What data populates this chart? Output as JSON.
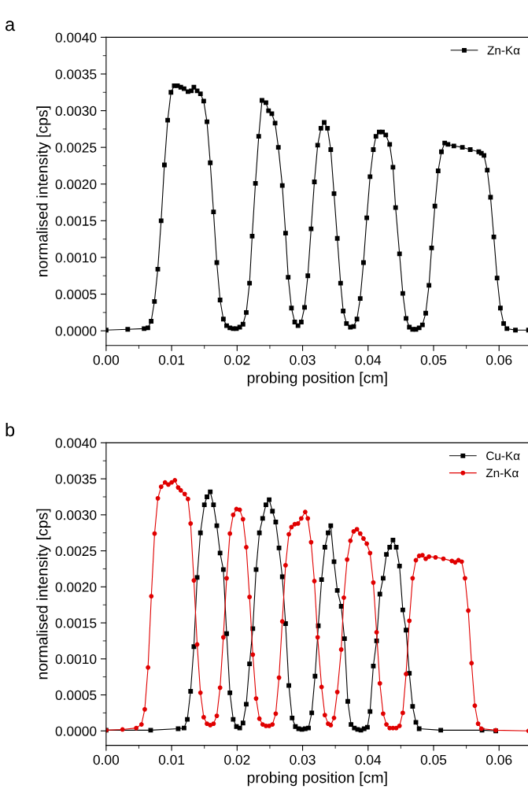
{
  "chart_data": [
    {
      "type": "line",
      "title": "a",
      "xlabel": "probing position [cm]",
      "ylabel": "normalised intensity [cps]",
      "legend": "top right",
      "grid": false,
      "xlim": [
        0,
        0.0645
      ],
      "ylim": [
        -0.0002,
        0.004
      ],
      "xticks": [
        {
          "value": 0,
          "label": "0.00"
        },
        {
          "value": 0.01,
          "label": "0.01"
        },
        {
          "value": 0.02,
          "label": "0.02"
        },
        {
          "value": 0.03,
          "label": "0.03"
        },
        {
          "value": 0.04,
          "label": "0.04"
        },
        {
          "value": 0.05,
          "label": "0.05"
        },
        {
          "value": 0.06,
          "label": "0.06"
        }
      ],
      "yticks": [
        {
          "value": 0,
          "label": "0.0000"
        },
        {
          "value": 0.0005,
          "label": "0.0005"
        },
        {
          "value": 0.001,
          "label": "0.0010"
        },
        {
          "value": 0.0015,
          "label": "0.0015"
        },
        {
          "value": 0.002,
          "label": "0.0020"
        },
        {
          "value": 0.0025,
          "label": "0.0025"
        },
        {
          "value": 0.003,
          "label": "0.0030"
        },
        {
          "value": 0.0035,
          "label": "0.0035"
        },
        {
          "value": 0.004,
          "label": "0.0040"
        }
      ],
      "series": [
        {
          "name": "Zn-Kα",
          "color": "#000000",
          "marker": "square",
          "x": [
            0,
            0.0033,
            0.0058,
            0.00637,
            0.00688,
            0.00738,
            0.00789,
            0.0084,
            0.0089,
            0.0094,
            0.0099,
            0.0104,
            0.0109,
            0.0114,
            0.0119,
            0.0125,
            0.013,
            0.0134,
            0.0139,
            0.0144,
            0.0149,
            0.0154,
            0.0159,
            0.0164,
            0.0169,
            0.0174,
            0.0179,
            0.0184,
            0.0189,
            0.0194,
            0.0199,
            0.0204,
            0.0209,
            0.0214,
            0.0219,
            0.0223,
            0.0228,
            0.0233,
            0.0238,
            0.0244,
            0.0248,
            0.0253,
            0.0258,
            0.0263,
            0.0269,
            0.0274,
            0.0278,
            0.0283,
            0.0288,
            0.0293,
            0.0298,
            0.0303,
            0.0308,
            0.0313,
            0.0318,
            0.0323,
            0.0328,
            0.0333,
            0.0338,
            0.0343,
            0.0348,
            0.0353,
            0.0358,
            0.0362,
            0.0367,
            0.0373,
            0.0378,
            0.0383,
            0.0388,
            0.0393,
            0.0398,
            0.0403,
            0.0408,
            0.0412,
            0.0417,
            0.0422,
            0.0427,
            0.0433,
            0.0438,
            0.0442,
            0.0448,
            0.0453,
            0.0458,
            0.0463,
            0.0468,
            0.0473,
            0.0478,
            0.0483,
            0.0488,
            0.0493,
            0.0497,
            0.0502,
            0.0507,
            0.0512,
            0.0517,
            0.0522,
            0.0531,
            0.0544,
            0.0556,
            0.0569,
            0.0573,
            0.0577,
            0.0582,
            0.0587,
            0.0592,
            0.0597,
            0.0602,
            0.0607,
            0.0612,
            0.0625,
            0.0645
          ],
          "values": [
            1e-05,
            2e-05,
            3e-05,
            4e-05,
            0.00013,
            0.0004,
            0.00084,
            0.0015,
            0.00226,
            0.00287,
            0.00325,
            0.00334,
            0.00334,
            0.00332,
            0.0033,
            0.00326,
            0.00327,
            0.00332,
            0.00327,
            0.00323,
            0.00313,
            0.00285,
            0.00229,
            0.00162,
            0.00093,
            0.00042,
            0.00016,
            7e-05,
            4e-05,
            3e-05,
            3e-05,
            5e-05,
            9e-05,
            0.00025,
            0.00065,
            0.00129,
            0.00201,
            0.00265,
            0.00314,
            0.00311,
            0.003,
            0.00296,
            0.00283,
            0.0025,
            0.00198,
            0.00133,
            0.00073,
            0.00031,
            0.00012,
            7e-05,
            0.00012,
            0.00032,
            0.00075,
            0.00139,
            0.00203,
            0.00253,
            0.00276,
            0.00284,
            0.00276,
            0.00247,
            0.00187,
            0.00126,
            0.00065,
            0.00027,
            0.0001,
            5e-05,
            6e-05,
            0.00016,
            0.00044,
            0.00093,
            0.00154,
            0.0021,
            0.00247,
            0.00265,
            0.00271,
            0.00271,
            0.00267,
            0.00254,
            0.00223,
            0.00168,
            0.00105,
            0.00051,
            0.00017,
            5e-05,
            2e-05,
            2e-05,
            4e-05,
            8e-05,
            0.00024,
            0.00062,
            0.00113,
            0.0017,
            0.00218,
            0.00244,
            0.00256,
            0.00254,
            0.00252,
            0.0025,
            0.00247,
            0.00244,
            0.00242,
            0.00239,
            0.00219,
            0.00182,
            0.00128,
            0.00072,
            0.00031,
            0.0001,
            3e-05,
            1e-05,
            1e-05
          ]
        }
      ]
    },
    {
      "type": "line",
      "title": "b",
      "xlabel": "probing position [cm]",
      "ylabel": "normalised intensity [cps]",
      "legend": "top right",
      "grid": false,
      "xlim": [
        0,
        0.0645
      ],
      "ylim": [
        -0.0002,
        0.004
      ],
      "xticks": [
        {
          "value": 0,
          "label": "0.00"
        },
        {
          "value": 0.01,
          "label": "0.01"
        },
        {
          "value": 0.02,
          "label": "0.02"
        },
        {
          "value": 0.03,
          "label": "0.03"
        },
        {
          "value": 0.04,
          "label": "0.04"
        },
        {
          "value": 0.05,
          "label": "0.05"
        },
        {
          "value": 0.06,
          "label": "0.06"
        }
      ],
      "yticks": [
        {
          "value": 0,
          "label": "0.0000"
        },
        {
          "value": 0.0005,
          "label": "0.0005"
        },
        {
          "value": 0.001,
          "label": "0.0010"
        },
        {
          "value": 0.0015,
          "label": "0.0015"
        },
        {
          "value": 0.002,
          "label": "0.0020"
        },
        {
          "value": 0.0025,
          "label": "0.0025"
        },
        {
          "value": 0.003,
          "label": "0.0030"
        },
        {
          "value": 0.0035,
          "label": "0.0035"
        },
        {
          "value": 0.004,
          "label": "0.0040"
        }
      ],
      "series": [
        {
          "name": "Cu-Kα",
          "color": "#000000",
          "marker": "square",
          "x": [
            0,
            0.0068,
            0.011,
            0.0119,
            0.0124,
            0.0129,
            0.0134,
            0.0139,
            0.0144,
            0.015,
            0.0154,
            0.0159,
            0.0164,
            0.0169,
            0.0174,
            0.0179,
            0.0184,
            0.0189,
            0.0194,
            0.0199,
            0.0204,
            0.0209,
            0.0214,
            0.0219,
            0.0224,
            0.0229,
            0.0234,
            0.0239,
            0.0244,
            0.0249,
            0.0254,
            0.0259,
            0.0264,
            0.0269,
            0.0274,
            0.0279,
            0.0284,
            0.0289,
            0.0294,
            0.0299,
            0.0304,
            0.0309,
            0.0314,
            0.0319,
            0.0324,
            0.0329,
            0.0334,
            0.0339,
            0.0343,
            0.0348,
            0.0353,
            0.0359,
            0.0364,
            0.0369,
            0.0374,
            0.0379,
            0.0384,
            0.0389,
            0.0394,
            0.0399,
            0.0403,
            0.0408,
            0.0413,
            0.0418,
            0.0423,
            0.0428,
            0.0433,
            0.0438,
            0.0443,
            0.0448,
            0.0453,
            0.0458,
            0.0463,
            0.0468,
            0.0473,
            0.0478,
            0.0511,
            0.0574,
            0.0595
          ],
          "values": [
            1e-05,
            1e-05,
            3e-05,
            4e-05,
            0.00016,
            0.00055,
            0.00117,
            0.00213,
            0.00275,
            0.00314,
            0.00325,
            0.00332,
            0.00314,
            0.00285,
            0.00247,
            0.00224,
            0.00135,
            0.00053,
            0.00016,
            6e-05,
            4e-05,
            0.00011,
            0.00037,
            0.00093,
            0.00142,
            0.00224,
            0.00275,
            0.00295,
            0.00314,
            0.00321,
            0.00305,
            0.0029,
            0.00254,
            0.00214,
            0.00149,
            0.00063,
            0.00018,
            6e-05,
            3e-05,
            2e-05,
            3e-05,
            4e-05,
            0.00025,
            0.00076,
            0.00146,
            0.0021,
            0.00255,
            0.00275,
            0.00285,
            0.00235,
            0.00195,
            0.00173,
            0.00128,
            0.00041,
            9e-05,
            4e-05,
            2e-05,
            1e-05,
            3e-05,
            5e-05,
            0.00027,
            0.0009,
            0.00125,
            0.0019,
            0.00212,
            0.00245,
            0.00255,
            0.00265,
            0.00255,
            0.00229,
            0.00168,
            0.0014,
            0.0008,
            0.00034,
            0.00012,
            3e-05,
            1e-05,
            1e-05,
            0
          ]
        },
        {
          "name": "Zn-Kα",
          "color": "#e00000",
          "marker": "circle",
          "x": [
            0,
            0.0025,
            0.0046,
            0.0054,
            0.0059,
            0.0064,
            0.0069,
            0.0074,
            0.0079,
            0.0084,
            0.009,
            0.0095,
            0.01,
            0.0105,
            0.011,
            0.0114,
            0.012,
            0.0125,
            0.0129,
            0.0134,
            0.0139,
            0.0144,
            0.0149,
            0.0154,
            0.0159,
            0.0164,
            0.0169,
            0.0174,
            0.0179,
            0.0184,
            0.0189,
            0.0194,
            0.0199,
            0.0204,
            0.0209,
            0.0214,
            0.0219,
            0.0224,
            0.0229,
            0.0234,
            0.0239,
            0.0244,
            0.0249,
            0.0254,
            0.0259,
            0.0264,
            0.0269,
            0.0274,
            0.0279,
            0.0283,
            0.0288,
            0.0293,
            0.0298,
            0.0304,
            0.0308,
            0.0313,
            0.0318,
            0.0323,
            0.0329,
            0.0334,
            0.0339,
            0.0343,
            0.0348,
            0.0353,
            0.0359,
            0.0363,
            0.0368,
            0.0373,
            0.0378,
            0.0383,
            0.0388,
            0.0393,
            0.0398,
            0.0403,
            0.0408,
            0.0413,
            0.0418,
            0.0423,
            0.0428,
            0.0433,
            0.0438,
            0.0443,
            0.0448,
            0.0453,
            0.0458,
            0.0463,
            0.0468,
            0.0473,
            0.0478,
            0.0483,
            0.0488,
            0.0493,
            0.0503,
            0.0515,
            0.0528,
            0.0533,
            0.0538,
            0.0543,
            0.0548,
            0.0553,
            0.0558,
            0.0563,
            0.0568,
            0.0573,
            0.0595,
            0.0645
          ],
          "values": [
            1e-05,
            2e-05,
            4e-05,
            9e-05,
            0.0003,
            0.00088,
            0.00187,
            0.00274,
            0.00323,
            0.00339,
            0.00345,
            0.00342,
            0.00345,
            0.00348,
            0.00338,
            0.00334,
            0.00329,
            0.00322,
            0.00288,
            0.00209,
            0.0012,
            0.00053,
            0.00019,
            0.0001,
            8e-05,
            0.0001,
            0.00021,
            0.0006,
            0.0013,
            0.00212,
            0.00274,
            0.003,
            0.00308,
            0.00307,
            0.00294,
            0.00255,
            0.00186,
            0.00106,
            0.00045,
            0.00017,
            9e-05,
            7e-05,
            7e-05,
            9e-05,
            0.00024,
            0.00074,
            0.00152,
            0.0023,
            0.00273,
            0.00283,
            0.00287,
            0.00288,
            0.00295,
            0.00304,
            0.00295,
            0.00262,
            0.00208,
            0.0013,
            0.00061,
            0.00022,
            0.0001,
            8e-05,
            0.00018,
            0.00054,
            0.00113,
            0.00185,
            0.00238,
            0.00264,
            0.00277,
            0.0028,
            0.00274,
            0.00267,
            0.0026,
            0.00247,
            0.00206,
            0.00137,
            0.00066,
            0.00024,
            9e-05,
            4e-05,
            4e-05,
            4e-05,
            7e-05,
            0.00025,
            0.00079,
            0.00153,
            0.00212,
            0.00237,
            0.00243,
            0.00244,
            0.00239,
            0.00242,
            0.00241,
            0.00239,
            0.00236,
            0.00234,
            0.00237,
            0.00235,
            0.00212,
            0.00167,
            0.00094,
            0.00035,
            0.0001,
            3e-05,
            1e-05,
            0
          ]
        }
      ]
    }
  ]
}
